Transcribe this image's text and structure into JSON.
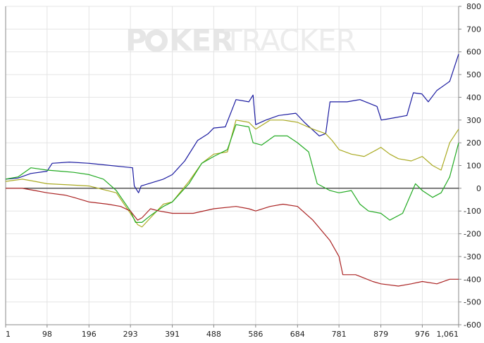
{
  "watermark": {
    "part1": "P",
    "part2": "KER",
    "part3": "TRACKER"
  },
  "chart_data": {
    "type": "line",
    "title": "",
    "xlabel": "",
    "ylabel": "",
    "xlim": [
      1,
      1061
    ],
    "ylim": [
      -600,
      800
    ],
    "x_ticks": [
      1,
      98,
      196,
      293,
      391,
      488,
      586,
      684,
      781,
      879,
      976,
      1061
    ],
    "x_tick_labels": [
      "1",
      "98",
      "196",
      "293",
      "391",
      "488",
      "586",
      "684",
      "781",
      "879",
      "976",
      "1,061"
    ],
    "y_ticks": [
      -600,
      -500,
      -400,
      -300,
      -200,
      -100,
      0,
      100,
      200,
      300,
      400,
      500,
      600,
      700,
      800
    ],
    "grid": true,
    "legend": "none",
    "zero_line": true,
    "series": [
      {
        "color": "#1a1aa0",
        "points": [
          [
            1,
            40
          ],
          [
            30,
            45
          ],
          [
            60,
            65
          ],
          [
            98,
            75
          ],
          [
            110,
            110
          ],
          [
            150,
            115
          ],
          [
            196,
            110
          ],
          [
            298,
            90
          ],
          [
            302,
            10
          ],
          [
            312,
            -20
          ],
          [
            318,
            10
          ],
          [
            370,
            40
          ],
          [
            391,
            60
          ],
          [
            420,
            120
          ],
          [
            450,
            210
          ],
          [
            475,
            240
          ],
          [
            488,
            265
          ],
          [
            515,
            270
          ],
          [
            540,
            390
          ],
          [
            570,
            380
          ],
          [
            580,
            410
          ],
          [
            586,
            280
          ],
          [
            610,
            300
          ],
          [
            640,
            320
          ],
          [
            680,
            330
          ],
          [
            700,
            290
          ],
          [
            735,
            230
          ],
          [
            750,
            240
          ],
          [
            760,
            380
          ],
          [
            800,
            380
          ],
          [
            830,
            390
          ],
          [
            870,
            360
          ],
          [
            880,
            300
          ],
          [
            910,
            310
          ],
          [
            940,
            320
          ],
          [
            955,
            420
          ],
          [
            975,
            415
          ],
          [
            990,
            380
          ],
          [
            1010,
            430
          ],
          [
            1040,
            470
          ],
          [
            1061,
            590
          ]
        ]
      },
      {
        "color": "#aaaa22",
        "points": [
          [
            1,
            30
          ],
          [
            40,
            40
          ],
          [
            70,
            30
          ],
          [
            98,
            20
          ],
          [
            150,
            15
          ],
          [
            196,
            10
          ],
          [
            260,
            -20
          ],
          [
            293,
            -110
          ],
          [
            310,
            -160
          ],
          [
            320,
            -170
          ],
          [
            340,
            -130
          ],
          [
            370,
            -70
          ],
          [
            391,
            -60
          ],
          [
            430,
            30
          ],
          [
            460,
            110
          ],
          [
            488,
            150
          ],
          [
            520,
            160
          ],
          [
            540,
            300
          ],
          [
            570,
            290
          ],
          [
            586,
            260
          ],
          [
            620,
            300
          ],
          [
            650,
            300
          ],
          [
            684,
            290
          ],
          [
            720,
            260
          ],
          [
            750,
            240
          ],
          [
            765,
            210
          ],
          [
            781,
            170
          ],
          [
            810,
            150
          ],
          [
            840,
            140
          ],
          [
            870,
            170
          ],
          [
            879,
            180
          ],
          [
            900,
            150
          ],
          [
            920,
            130
          ],
          [
            950,
            120
          ],
          [
            976,
            140
          ],
          [
            1000,
            100
          ],
          [
            1020,
            80
          ],
          [
            1040,
            200
          ],
          [
            1061,
            260
          ]
        ]
      },
      {
        "color": "#22aa22",
        "points": [
          [
            1,
            40
          ],
          [
            30,
            50
          ],
          [
            60,
            90
          ],
          [
            98,
            80
          ],
          [
            130,
            75
          ],
          [
            160,
            70
          ],
          [
            196,
            60
          ],
          [
            230,
            40
          ],
          [
            260,
            -10
          ],
          [
            293,
            -100
          ],
          [
            305,
            -150
          ],
          [
            320,
            -150
          ],
          [
            340,
            -120
          ],
          [
            370,
            -80
          ],
          [
            391,
            -60
          ],
          [
            430,
            20
          ],
          [
            460,
            110
          ],
          [
            488,
            140
          ],
          [
            520,
            170
          ],
          [
            540,
            280
          ],
          [
            570,
            270
          ],
          [
            580,
            200
          ],
          [
            600,
            190
          ],
          [
            630,
            230
          ],
          [
            660,
            230
          ],
          [
            684,
            200
          ],
          [
            710,
            160
          ],
          [
            730,
            20
          ],
          [
            760,
            -10
          ],
          [
            781,
            -20
          ],
          [
            810,
            -10
          ],
          [
            830,
            -70
          ],
          [
            850,
            -100
          ],
          [
            879,
            -110
          ],
          [
            900,
            -140
          ],
          [
            930,
            -110
          ],
          [
            960,
            20
          ],
          [
            976,
            -10
          ],
          [
            1000,
            -40
          ],
          [
            1020,
            -20
          ],
          [
            1040,
            50
          ],
          [
            1061,
            200
          ]
        ]
      },
      {
        "color": "#aa2222",
        "points": [
          [
            1,
            0
          ],
          [
            40,
            0
          ],
          [
            70,
            -10
          ],
          [
            98,
            -20
          ],
          [
            140,
            -30
          ],
          [
            160,
            -40
          ],
          [
            196,
            -60
          ],
          [
            240,
            -70
          ],
          [
            270,
            -80
          ],
          [
            293,
            -100
          ],
          [
            310,
            -140
          ],
          [
            320,
            -130
          ],
          [
            340,
            -90
          ],
          [
            360,
            -100
          ],
          [
            391,
            -110
          ],
          [
            440,
            -110
          ],
          [
            488,
            -90
          ],
          [
            540,
            -80
          ],
          [
            570,
            -90
          ],
          [
            586,
            -100
          ],
          [
            620,
            -80
          ],
          [
            650,
            -70
          ],
          [
            684,
            -80
          ],
          [
            720,
            -140
          ],
          [
            760,
            -230
          ],
          [
            781,
            -300
          ],
          [
            790,
            -380
          ],
          [
            820,
            -380
          ],
          [
            860,
            -410
          ],
          [
            879,
            -420
          ],
          [
            920,
            -430
          ],
          [
            950,
            -420
          ],
          [
            976,
            -410
          ],
          [
            1010,
            -420
          ],
          [
            1040,
            -400
          ],
          [
            1061,
            -400
          ]
        ]
      }
    ]
  }
}
